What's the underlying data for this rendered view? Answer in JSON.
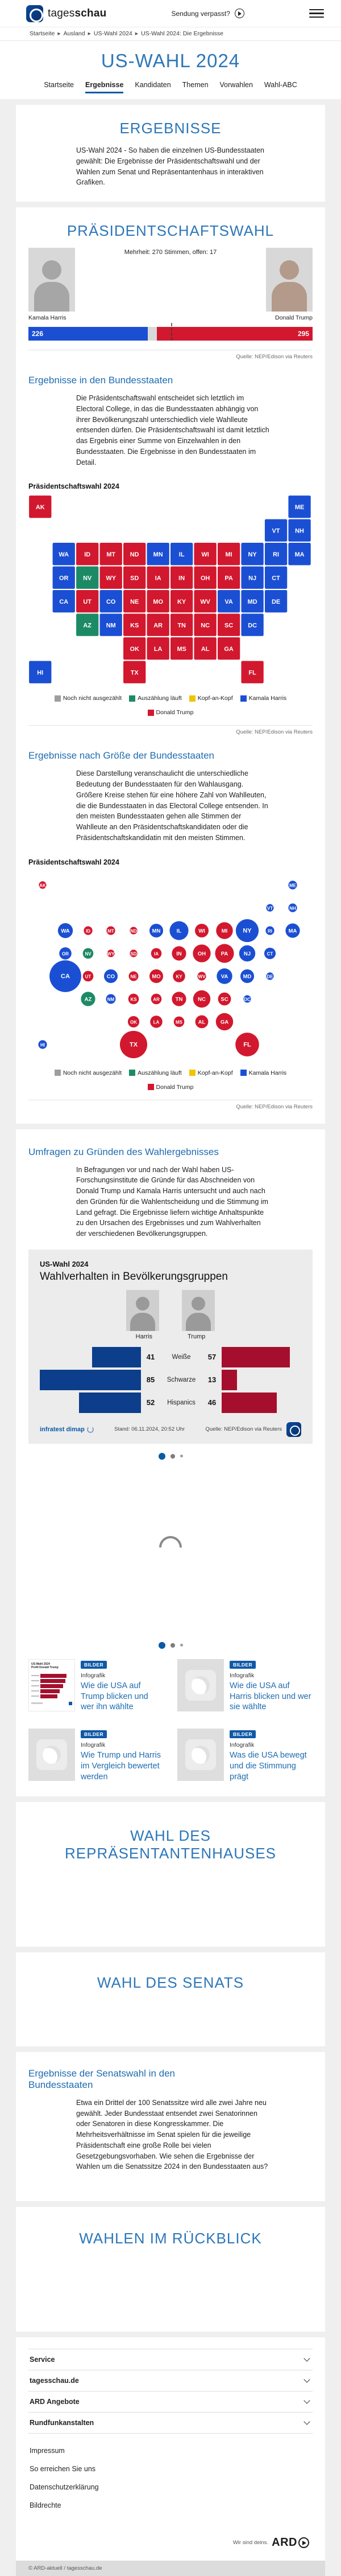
{
  "header": {
    "logo_regular": "tages",
    "logo_bold": "schau",
    "sendung_verpasst": "Sendung verpasst?"
  },
  "breadcrumb": {
    "separator": "▸",
    "items": [
      "Startseite",
      "Ausland",
      "US-Wahl 2024",
      "US-Wahl 2024: Die Ergebnisse"
    ]
  },
  "hero": {
    "title": "US-WAHL 2024",
    "tabs": [
      {
        "label": "Startseite",
        "active": false
      },
      {
        "label": "Ergebnisse",
        "active": true
      },
      {
        "label": "Kandidaten",
        "active": false
      },
      {
        "label": "Themen",
        "active": false
      },
      {
        "label": "Vorwahlen",
        "active": false
      },
      {
        "label": "Wahl-ABC",
        "active": false
      }
    ]
  },
  "ergebnisse": {
    "title": "ERGEBNISSE",
    "text": "US-Wahl 2024 - So haben die einzelnen US-Bundesstaaten gewählt: Die Ergebnisse der Präsidentschaftswahl und der Wahlen zum Senat und Repräsentantenhaus in interaktiven Grafiken."
  },
  "praesidentschaftswahl": {
    "title": "PRÄSIDENTSCHAFTSWAHL",
    "majority_note": "Mehrheit: 270 Stimmen, offen: 17",
    "harris_name": "Kamala Harris",
    "trump_name": "Donald Trump",
    "source": "Quelle: NEP/Edison via Reuters",
    "staaten_heading": "Ergebnisse in den Bundesstaaten",
    "staaten_text": "Die Präsidentschaftswahl entscheidet sich letztlich im Electoral College, in das die Bundesstaaten abhängig von ihrer Bevölkerungszahl unterschiedlich viele Wahlleute entsenden dürfen. Die Präsidentschaftswahl ist damit letztlich das Ergebnis einer Summe von Einzelwahlen in den Bundesstaaten. Die Ergebnisse in den Bundesstaaten im Detail.",
    "chart_label": "Präsidentschaftswahl 2024",
    "groesse_heading": "Ergebnisse nach Größe der Bundesstaaten",
    "groesse_text": "Diese Darstellung veranschaulicht die unterschiedliche Bedeutung der Bundesstaaten für den Wahlausgang. Größere Kreise stehen für eine höhere Zahl von Wahlleuten, die die Bundesstaaten in das Electoral College entsenden. In den meisten Bundesstaaten gehen alle Stimmen der Wahlleute an den Präsidentschaftskandidaten oder die Präsidentschaftskandidatin mit den meisten Stimmen."
  },
  "map_legend": [
    {
      "label": "Noch nicht ausgezählt",
      "color": "#9e9e9e",
      "status": "none"
    },
    {
      "label": "Auszählung läuft",
      "color": "#1d8a66",
      "status": "counting"
    },
    {
      "label": "Kopf-an-Kopf",
      "color": "#f0c400",
      "status": "tied"
    },
    {
      "label": "Kamala Harris",
      "color": "#1b4fd3",
      "status": "harris"
    },
    {
      "label": "Donald Trump",
      "color": "#d2182e",
      "status": "trump"
    }
  ],
  "chart_data": [
    {
      "id": "electoral-college-bar",
      "type": "bar",
      "title": "Präsidentschaftswahl 2024 – Electoral College",
      "categories": [
        "Kamala Harris",
        "offen",
        "Donald Trump"
      ],
      "values": [
        226,
        17,
        295
      ],
      "majority": 270,
      "total": 538,
      "colors": [
        "#1b4fd3",
        "#d9d9d9",
        "#d2182e"
      ],
      "annotation": "Mehrheit: 270 Stimmen, offen: 17"
    },
    {
      "id": "state-choropleth",
      "type": "heatmap",
      "title": "Präsidentschaftswahl 2024 – Ergebnisse in den Bundesstaaten",
      "legend_position": "bottom",
      "states": [
        {
          "abbr": "AK",
          "ev": 3,
          "status": "trump"
        },
        {
          "abbr": "ME",
          "ev": 4,
          "status": "harris"
        },
        {
          "abbr": "VT",
          "ev": 3,
          "status": "harris"
        },
        {
          "abbr": "NH",
          "ev": 4,
          "status": "harris"
        },
        {
          "abbr": "WA",
          "ev": 12,
          "status": "harris"
        },
        {
          "abbr": "ID",
          "ev": 4,
          "status": "trump"
        },
        {
          "abbr": "MT",
          "ev": 4,
          "status": "trump"
        },
        {
          "abbr": "ND",
          "ev": 3,
          "status": "trump"
        },
        {
          "abbr": "MN",
          "ev": 10,
          "status": "harris"
        },
        {
          "abbr": "IL",
          "ev": 19,
          "status": "harris"
        },
        {
          "abbr": "WI",
          "ev": 10,
          "status": "trump"
        },
        {
          "abbr": "MI",
          "ev": 15,
          "status": "trump"
        },
        {
          "abbr": "NY",
          "ev": 28,
          "status": "harris"
        },
        {
          "abbr": "RI",
          "ev": 4,
          "status": "harris"
        },
        {
          "abbr": "MA",
          "ev": 11,
          "status": "harris"
        },
        {
          "abbr": "OR",
          "ev": 8,
          "status": "harris"
        },
        {
          "abbr": "NV",
          "ev": 6,
          "status": "counting"
        },
        {
          "abbr": "WY",
          "ev": 3,
          "status": "trump"
        },
        {
          "abbr": "SD",
          "ev": 3,
          "status": "trump"
        },
        {
          "abbr": "IA",
          "ev": 6,
          "status": "trump"
        },
        {
          "abbr": "IN",
          "ev": 11,
          "status": "trump"
        },
        {
          "abbr": "OH",
          "ev": 17,
          "status": "trump"
        },
        {
          "abbr": "PA",
          "ev": 19,
          "status": "trump"
        },
        {
          "abbr": "NJ",
          "ev": 14,
          "status": "harris"
        },
        {
          "abbr": "CT",
          "ev": 7,
          "status": "harris"
        },
        {
          "abbr": "CA",
          "ev": 54,
          "status": "harris"
        },
        {
          "abbr": "UT",
          "ev": 6,
          "status": "trump"
        },
        {
          "abbr": "CO",
          "ev": 10,
          "status": "harris"
        },
        {
          "abbr": "NE",
          "ev": 5,
          "status": "trump"
        },
        {
          "abbr": "MO",
          "ev": 10,
          "status": "trump"
        },
        {
          "abbr": "KY",
          "ev": 8,
          "status": "trump"
        },
        {
          "abbr": "WV",
          "ev": 4,
          "status": "trump"
        },
        {
          "abbr": "VA",
          "ev": 13,
          "status": "harris"
        },
        {
          "abbr": "MD",
          "ev": 10,
          "status": "harris"
        },
        {
          "abbr": "DE",
          "ev": 3,
          "status": "harris"
        },
        {
          "abbr": "AZ",
          "ev": 11,
          "status": "counting"
        },
        {
          "abbr": "NM",
          "ev": 5,
          "status": "harris"
        },
        {
          "abbr": "KS",
          "ev": 6,
          "status": "trump"
        },
        {
          "abbr": "AR",
          "ev": 6,
          "status": "trump"
        },
        {
          "abbr": "TN",
          "ev": 11,
          "status": "trump"
        },
        {
          "abbr": "NC",
          "ev": 16,
          "status": "trump"
        },
        {
          "abbr": "SC",
          "ev": 9,
          "status": "trump"
        },
        {
          "abbr": "DC",
          "ev": 3,
          "status": "harris"
        },
        {
          "abbr": "OK",
          "ev": 7,
          "status": "trump"
        },
        {
          "abbr": "LA",
          "ev": 8,
          "status": "trump"
        },
        {
          "abbr": "MS",
          "ev": 6,
          "status": "trump"
        },
        {
          "abbr": "AL",
          "ev": 9,
          "status": "trump"
        },
        {
          "abbr": "GA",
          "ev": 16,
          "status": "trump"
        },
        {
          "abbr": "HI",
          "ev": 4,
          "status": "harris"
        },
        {
          "abbr": "TX",
          "ev": 40,
          "status": "trump"
        },
        {
          "abbr": "FL",
          "ev": 30,
          "status": "trump"
        }
      ]
    },
    {
      "id": "state-cartogram",
      "type": "scatter",
      "title": "Präsidentschaftswahl 2024 – Ergebnisse nach Größe der Bundesstaaten",
      "note": "Kreisfläche proportional zur Zahl der Wahlleute; gleiche Staaten/Status wie state-choropleth",
      "size_by": "ev",
      "legend_position": "bottom"
    },
    {
      "id": "wahlverhalten-gruppen",
      "type": "bar",
      "title": "Wahlverhalten in Bevölkerungsgruppen",
      "categories": [
        "Weiße",
        "Schwarze",
        "Hispanics"
      ],
      "series": [
        {
          "name": "Harris",
          "values": [
            41,
            85,
            52
          ],
          "color": "#0c3e8c"
        },
        {
          "name": "Trump",
          "values": [
            57,
            13,
            46
          ],
          "color": "#a50f2d"
        }
      ],
      "unit": "Prozent",
      "xlim": [
        0,
        100
      ]
    }
  ],
  "umfragen": {
    "heading": "Umfragen zu Gründen des Wahlergebnisses",
    "text": "In Befragungen vor und nach der Wahl haben US-Forschungsinstitute die Gründe für das Abschneiden von Donald Trump und Kamala Harris untersucht und auch nach den Gründen für die Wahlentscheidung und die Stimmung im Land gefragt. Die Ergebnisse liefern wichtige Anhaltspunkte zu den Ursachen des Ergebnisses und zum Wahlverhalten der verschiedenen Bevölkerungsgruppen."
  },
  "infratest": {
    "kicker": "US-Wahl 2024",
    "title": "Wahlverhalten in Bevölkerungsgruppen",
    "left_label": "Harris",
    "right_label": "Trump",
    "rows": [
      {
        "category": "Weiße",
        "harris": 41,
        "trump": 57
      },
      {
        "category": "Schwarze",
        "harris": 85,
        "trump": 13
      },
      {
        "category": "Hispanics",
        "harris": 52,
        "trump": 46
      }
    ],
    "brand": "infratest dimap",
    "stand": "Stand:  06.11.2024, 20:52 Uhr",
    "source": "Quelle: NEP/Edison via Reuters"
  },
  "teasers": [
    {
      "badge": "BILDER",
      "kicker": "Infografik",
      "title": "Wie die USA auf Trump blicken und wer ihn wählte",
      "thumb": "chart",
      "thumb_kicker": "US-Wahl 2024",
      "thumb_title": "Profil Donald Trump"
    },
    {
      "badge": "BILDER",
      "kicker": "Infografik",
      "title": "Wie die USA auf Harris blicken und wer sie wählte",
      "thumb": "globe"
    },
    {
      "badge": "BILDER",
      "kicker": "Infografik",
      "title": "Wie Trump und Harris im Vergleich bewertet werden",
      "thumb": "globe"
    },
    {
      "badge": "BILDER",
      "kicker": "Infografik",
      "title": "Was die USA bewegt und die Stimmung prägt",
      "thumb": "globe"
    }
  ],
  "sections": {
    "repraesentantenhaus": "WAHL DES REPRÄSENTANTENHAUSES",
    "senat": "WAHL DES SENATS",
    "senatswahl_heading": "Ergebnisse der Senatswahl in den Bundesstaaten",
    "senatswahl_text": "Etwa ein Drittel der 100 Senatssitze wird alle zwei Jahre neu gewählt. Jeder Bundesstaat entsendet zwei Senatorinnen oder Senatoren in diese Kongresskammer. Die Mehrheitsverhältnisse im Senat spielen für die jeweilige Präsidentschaft eine große Rolle bei vielen Gesetzgebungsvorhaben. Wie sehen die Ergebnisse der Wahlen um die Senatssitze 2024 in den Bundesstaaten aus?",
    "rueckblick": "WAHLEN IM RÜCKBLICK"
  },
  "footer": {
    "accordions": [
      "Service",
      "tagesschau.de",
      "ARD Angebote",
      "Rundfunkanstalten"
    ],
    "links": [
      "Impressum",
      "So erreichen Sie uns",
      "Datenschutzerklärung",
      "Bildrechte"
    ],
    "ard_claim": "Wir sind deins.",
    "ard_logo": "ARD",
    "copyright": "© ARD-aktuell / tagesschau.de"
  }
}
